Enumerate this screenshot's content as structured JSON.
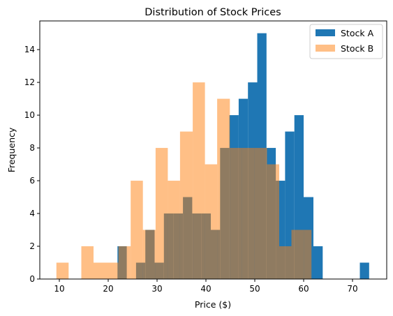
{
  "chart_data": {
    "type": "histogram",
    "title": "Distribution of Stock Prices",
    "xlabel": "Price ($)",
    "ylabel": "Frequency",
    "xlim": [
      6,
      77
    ],
    "ylim": [
      0,
      15.75
    ],
    "x_ticks": [
      10,
      20,
      30,
      40,
      50,
      60,
      70
    ],
    "y_ticks": [
      0,
      2,
      4,
      6,
      8,
      10,
      12,
      14
    ],
    "legend_position": "top-right",
    "series": [
      {
        "name": "Stock A",
        "color": "#1f77b4",
        "opacity": 1.0,
        "bins": [
          {
            "x0": 21.9,
            "x1": 23.8,
            "count": 2
          },
          {
            "x0": 23.8,
            "x1": 25.7,
            "count": 0
          },
          {
            "x0": 25.7,
            "x1": 27.6,
            "count": 1
          },
          {
            "x0": 27.6,
            "x1": 29.5,
            "count": 3
          },
          {
            "x0": 29.5,
            "x1": 31.4,
            "count": 1
          },
          {
            "x0": 31.4,
            "x1": 33.4,
            "count": 4
          },
          {
            "x0": 33.4,
            "x1": 35.3,
            "count": 4
          },
          {
            "x0": 35.3,
            "x1": 37.2,
            "count": 5
          },
          {
            "x0": 37.2,
            "x1": 39.1,
            "count": 4
          },
          {
            "x0": 39.1,
            "x1": 41.0,
            "count": 4
          },
          {
            "x0": 41.0,
            "x1": 42.9,
            "count": 3
          },
          {
            "x0": 42.9,
            "x1": 44.8,
            "count": 8
          },
          {
            "x0": 44.8,
            "x1": 46.7,
            "count": 10
          },
          {
            "x0": 46.7,
            "x1": 48.6,
            "count": 11
          },
          {
            "x0": 48.6,
            "x1": 50.5,
            "count": 12
          },
          {
            "x0": 50.5,
            "x1": 52.4,
            "count": 15
          },
          {
            "x0": 52.4,
            "x1": 54.3,
            "count": 8
          },
          {
            "x0": 54.3,
            "x1": 56.2,
            "count": 6
          },
          {
            "x0": 56.2,
            "x1": 58.1,
            "count": 9
          },
          {
            "x0": 58.1,
            "x1": 60.0,
            "count": 10
          },
          {
            "x0": 60.0,
            "x1": 62.0,
            "count": 5
          },
          {
            "x0": 62.0,
            "x1": 63.9,
            "count": 2
          },
          {
            "x0": 63.9,
            "x1": 65.8,
            "count": 0
          },
          {
            "x0": 65.8,
            "x1": 67.7,
            "count": 0
          },
          {
            "x0": 67.7,
            "x1": 69.6,
            "count": 0
          },
          {
            "x0": 69.6,
            "x1": 71.5,
            "count": 0
          },
          {
            "x0": 71.5,
            "x1": 73.4,
            "count": 1
          }
        ]
      },
      {
        "name": "Stock B",
        "color": "#ff7f0e",
        "opacity": 0.5,
        "bins": [
          {
            "x0": 9.4,
            "x1": 11.9,
            "count": 1
          },
          {
            "x0": 11.9,
            "x1": 14.5,
            "count": 0
          },
          {
            "x0": 14.5,
            "x1": 17.0,
            "count": 2
          },
          {
            "x0": 17.0,
            "x1": 19.5,
            "count": 1
          },
          {
            "x0": 19.5,
            "x1": 22.1,
            "count": 1
          },
          {
            "x0": 22.1,
            "x1": 24.6,
            "count": 2
          },
          {
            "x0": 24.6,
            "x1": 27.1,
            "count": 6
          },
          {
            "x0": 27.1,
            "x1": 29.7,
            "count": 3
          },
          {
            "x0": 29.7,
            "x1": 32.2,
            "count": 8
          },
          {
            "x0": 32.2,
            "x1": 34.7,
            "count": 6
          },
          {
            "x0": 34.7,
            "x1": 37.3,
            "count": 9
          },
          {
            "x0": 37.3,
            "x1": 39.8,
            "count": 12
          },
          {
            "x0": 39.8,
            "x1": 42.3,
            "count": 7
          },
          {
            "x0": 42.3,
            "x1": 44.9,
            "count": 11
          },
          {
            "x0": 44.9,
            "x1": 47.4,
            "count": 8
          },
          {
            "x0": 47.4,
            "x1": 49.9,
            "count": 8
          },
          {
            "x0": 49.9,
            "x1": 52.5,
            "count": 8
          },
          {
            "x0": 52.5,
            "x1": 55.0,
            "count": 7
          },
          {
            "x0": 55.0,
            "x1": 57.5,
            "count": 2
          },
          {
            "x0": 57.5,
            "x1": 60.1,
            "count": 3
          },
          {
            "x0": 60.1,
            "x1": 61.6,
            "count": 3
          }
        ]
      }
    ]
  }
}
